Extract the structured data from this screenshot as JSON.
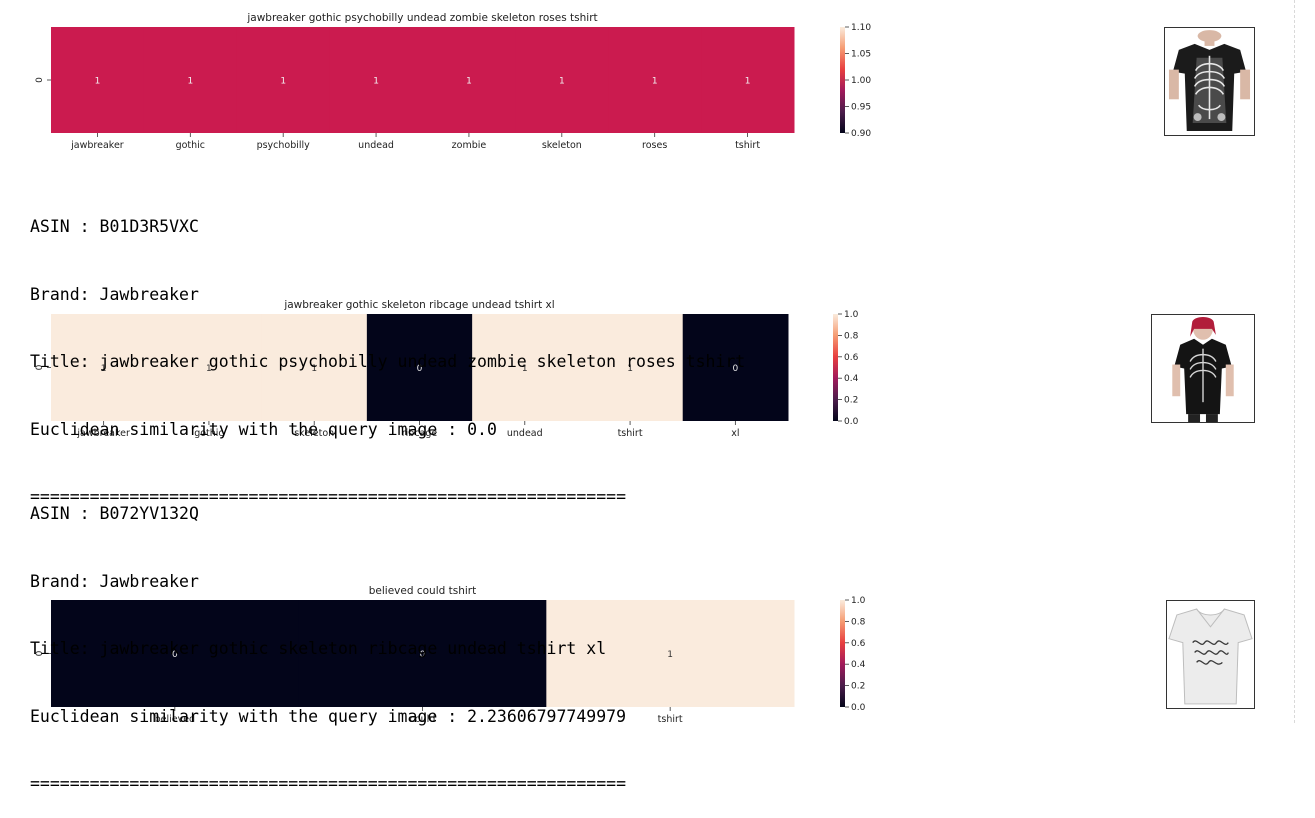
{
  "colorscale": {
    "stops": [
      "#03051a",
      "#4c1d4b",
      "#a11a5b",
      "#e83f3f",
      "#f69c73",
      "#faebdd"
    ],
    "cell_active": "#cb1b4f",
    "high": "#faebdd",
    "low": "#03051a"
  },
  "results": [
    {
      "chart_data": {
        "type": "heatmap",
        "title": "jawbreaker gothic psychobilly undead zombie skeleton roses tshirt",
        "rows": [
          "0"
        ],
        "columns": [
          "jawbreaker",
          "gothic",
          "psychobilly",
          "undead",
          "zombie",
          "skeleton",
          "roses",
          "tshirt"
        ],
        "values": [
          [
            1,
            1,
            1,
            1,
            1,
            1,
            1,
            1
          ]
        ],
        "annotations": [
          "1",
          "1",
          "1",
          "1",
          "1",
          "1",
          "1",
          "1"
        ],
        "colorbar": {
          "range": [
            0.9,
            1.1
          ],
          "ticks": [
            "0.90",
            "0.95",
            "1.00",
            "1.05",
            "1.10"
          ]
        }
      },
      "info": {
        "asin": "ASIN : B01D3R5VXC",
        "brand": "Brand: Jawbreaker",
        "title": "Title: jawbreaker gothic psychobilly undead zombie skeleton roses tshirt",
        "similarity": "Euclidean similarity with the query image : 0.0",
        "separator": "============================================================"
      },
      "image_icon": "skeleton-tshirt-icon"
    },
    {
      "chart_data": {
        "type": "heatmap",
        "title": "jawbreaker gothic skeleton ribcage undead tshirt xl",
        "rows": [
          "0"
        ],
        "columns": [
          "jawbreaker",
          "gothic",
          "skeleton",
          "ribcage",
          "undead",
          "tshirt",
          "xl"
        ],
        "values": [
          [
            1,
            1,
            1,
            0,
            1,
            1,
            0
          ]
        ],
        "annotations": [
          "1",
          "1",
          "1",
          "0",
          "1",
          "1",
          "0"
        ],
        "colorbar": {
          "range": [
            0.0,
            1.0
          ],
          "ticks": [
            "0.0",
            "0.2",
            "0.4",
            "0.6",
            "0.8",
            "1.0"
          ]
        }
      },
      "info": {
        "asin": "ASIN : B072YV132Q",
        "brand": "Brand: Jawbreaker",
        "title": "Title: jawbreaker gothic skeleton ribcage undead tshirt xl",
        "similarity": "Euclidean similarity with the query image : 2.23606797749979",
        "separator": "============================================================"
      },
      "image_icon": "ribcage-tshirt-model-icon"
    },
    {
      "chart_data": {
        "type": "heatmap",
        "title": "believed could tshirt",
        "rows": [
          "0"
        ],
        "columns": [
          "believed",
          "could",
          "tshirt"
        ],
        "values": [
          [
            0,
            0,
            1
          ]
        ],
        "annotations": [
          "0",
          "0",
          "1"
        ],
        "colorbar": {
          "range": [
            0.0,
            1.0
          ],
          "ticks": [
            "0.0",
            "0.2",
            "0.4",
            "0.6",
            "0.8",
            "1.0"
          ]
        }
      },
      "image_icon": "white-script-tshirt-icon"
    }
  ]
}
